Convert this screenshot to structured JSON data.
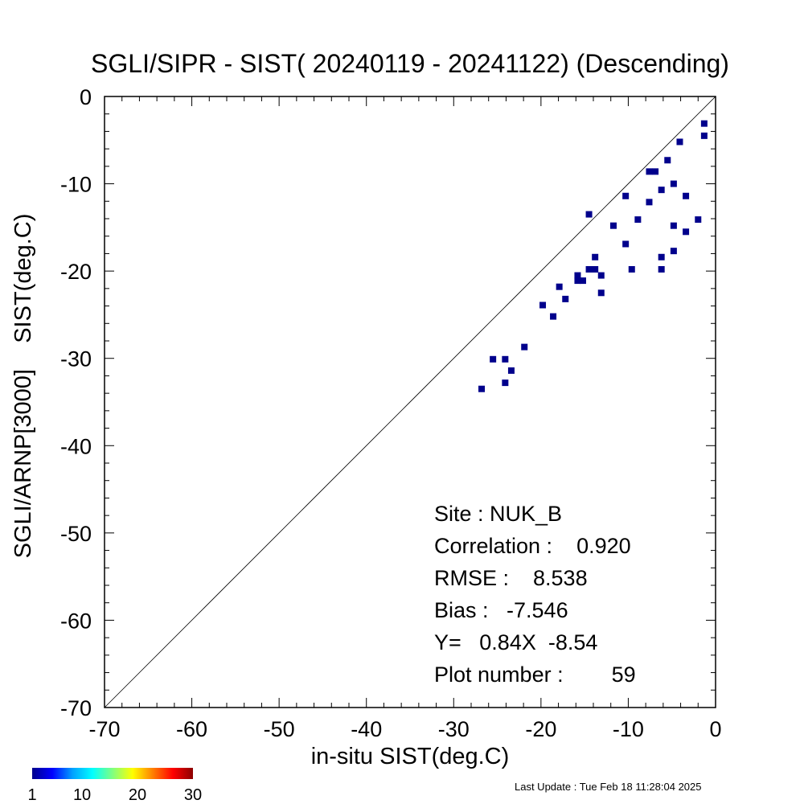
{
  "chart_data": {
    "type": "scatter",
    "title": "SGLI/SIPR - SIST( 20240119 - 20241122) (Descending)",
    "xlabel": "in-situ SIST(deg.C)",
    "ylabel": "SGLI/ARNP[3000]    SIST(deg.C)",
    "xlim": [
      -70,
      0
    ],
    "ylim": [
      -70,
      0
    ],
    "x_ticks": [
      -70,
      -60,
      -50,
      -40,
      -30,
      -20,
      -10,
      0
    ],
    "y_ticks": [
      -70,
      -60,
      -50,
      -40,
      -30,
      -20,
      -10,
      0
    ],
    "reference_line": "1:1",
    "marker_color": "#00008c",
    "points": [
      {
        "x": -26.8,
        "y": -33.5
      },
      {
        "x": -25.5,
        "y": -30.1
      },
      {
        "x": -24.1,
        "y": -30.1
      },
      {
        "x": -24.1,
        "y": -32.8
      },
      {
        "x": -23.4,
        "y": -31.4
      },
      {
        "x": -21.9,
        "y": -28.7
      },
      {
        "x": -19.8,
        "y": -23.9
      },
      {
        "x": -18.6,
        "y": -25.2
      },
      {
        "x": -17.9,
        "y": -21.8
      },
      {
        "x": -17.2,
        "y": -23.2
      },
      {
        "x": -15.8,
        "y": -20.5
      },
      {
        "x": -15.8,
        "y": -21.1
      },
      {
        "x": -15.2,
        "y": -21.1
      },
      {
        "x": -14.5,
        "y": -13.5
      },
      {
        "x": -14.5,
        "y": -19.8
      },
      {
        "x": -13.8,
        "y": -18.4
      },
      {
        "x": -13.8,
        "y": -19.8
      },
      {
        "x": -13.1,
        "y": -20.5
      },
      {
        "x": -13.1,
        "y": -22.5
      },
      {
        "x": -11.7,
        "y": -14.8
      },
      {
        "x": -10.3,
        "y": -11.4
      },
      {
        "x": -10.3,
        "y": -16.9
      },
      {
        "x": -9.6,
        "y": -19.8
      },
      {
        "x": -8.9,
        "y": -14.1
      },
      {
        "x": -7.6,
        "y": -8.6
      },
      {
        "x": -7.6,
        "y": -12.1
      },
      {
        "x": -6.9,
        "y": -8.6
      },
      {
        "x": -6.2,
        "y": -10.7
      },
      {
        "x": -6.2,
        "y": -18.4
      },
      {
        "x": -6.2,
        "y": -19.8
      },
      {
        "x": -5.5,
        "y": -7.3
      },
      {
        "x": -4.8,
        "y": -10.0
      },
      {
        "x": -4.8,
        "y": -14.8
      },
      {
        "x": -4.8,
        "y": -17.7
      },
      {
        "x": -4.1,
        "y": -5.2
      },
      {
        "x": -3.4,
        "y": -11.4
      },
      {
        "x": -3.4,
        "y": -15.5
      },
      {
        "x": -2.0,
        "y": -14.1
      },
      {
        "x": -1.3,
        "y": -3.1
      },
      {
        "x": -1.3,
        "y": -4.5
      }
    ],
    "stats": {
      "site": "Site : NUK_B",
      "correlation": "Correlation :    0.920",
      "rmse": "RMSE :    8.538",
      "bias": "Bias :   -7.546",
      "regression": "Y=   0.84X  -8.54",
      "plot_number": "Plot number :        59"
    },
    "colorbar": {
      "colors": [
        "#00008c",
        "#0000ff",
        "#00a0ff",
        "#00ffff",
        "#80ff80",
        "#ffff00",
        "#ff8000",
        "#ff0000",
        "#8c0000"
      ],
      "tick_labels": [
        "1",
        "10",
        "20",
        "30"
      ]
    }
  },
  "footer": {
    "last_update": "Last Update : Tue Feb 18 11:28:04 2025"
  }
}
